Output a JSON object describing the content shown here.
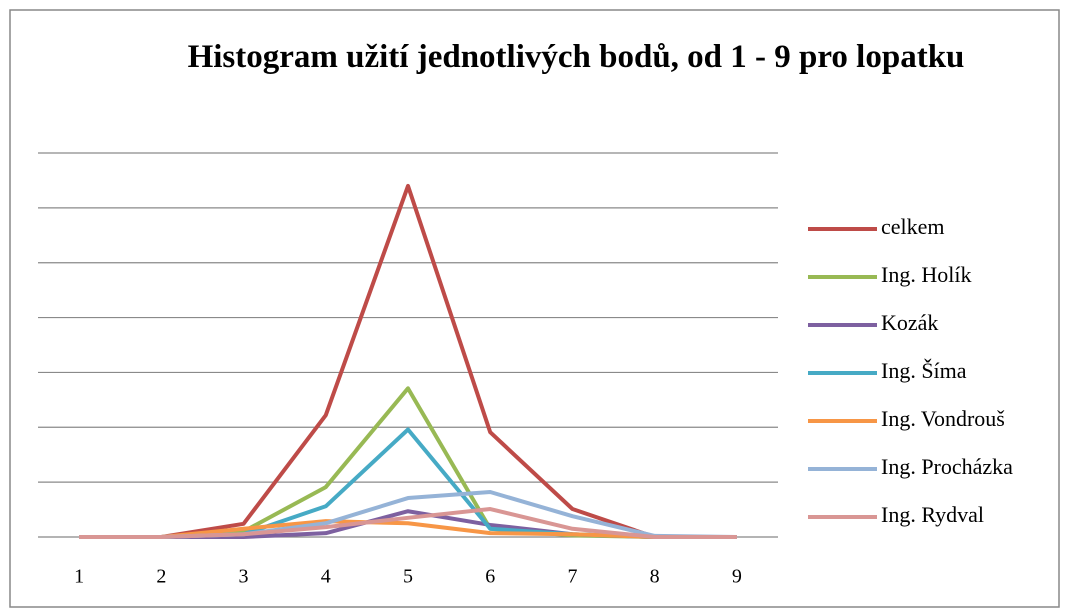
{
  "chart_data": {
    "type": "line",
    "title": "Histogram užití jednotlivých bodů, od 1 - 9 pro lopatku",
    "categories": [
      "1",
      "2",
      "3",
      "4",
      "5",
      "6",
      "7",
      "8",
      "9"
    ],
    "series": [
      {
        "name": "celkem",
        "color": "#be4b48",
        "values": [
          0,
          0,
          0.24,
          2.22,
          6.4,
          1.91,
          0.51,
          0,
          0
        ]
      },
      {
        "name": "Ing. Holík",
        "color": "#98b954",
        "values": [
          0,
          0,
          0.1,
          0.91,
          2.71,
          0.15,
          0.03,
          0,
          0
        ]
      },
      {
        "name": "Kozák",
        "color": "#7d60a0",
        "values": [
          0,
          0,
          0,
          0.07,
          0.47,
          0.22,
          0.05,
          0,
          0
        ]
      },
      {
        "name": "Ing. Šíma",
        "color": "#46aac5",
        "values": [
          0,
          0,
          0.05,
          0.56,
          1.96,
          0.15,
          0.05,
          0,
          0
        ]
      },
      {
        "name": "Ing. Vondrouš",
        "color": "#f79646",
        "values": [
          0,
          0,
          0.15,
          0.29,
          0.25,
          0.07,
          0.05,
          0,
          0
        ]
      },
      {
        "name": "Ing. Procházka",
        "color": "#95b3d7",
        "values": [
          0,
          0,
          0.05,
          0.25,
          0.71,
          0.82,
          0.38,
          0.02,
          0
        ]
      },
      {
        "name": "Ing. Rydval",
        "color": "#d99694",
        "values": [
          0,
          0,
          0.05,
          0.18,
          0.35,
          0.51,
          0.15,
          0,
          0
        ]
      }
    ],
    "ylim": [
      0,
      7
    ],
    "yticks": [
      0,
      1,
      2,
      3,
      4,
      5,
      6,
      7
    ],
    "grid": true,
    "legend": "right"
  }
}
